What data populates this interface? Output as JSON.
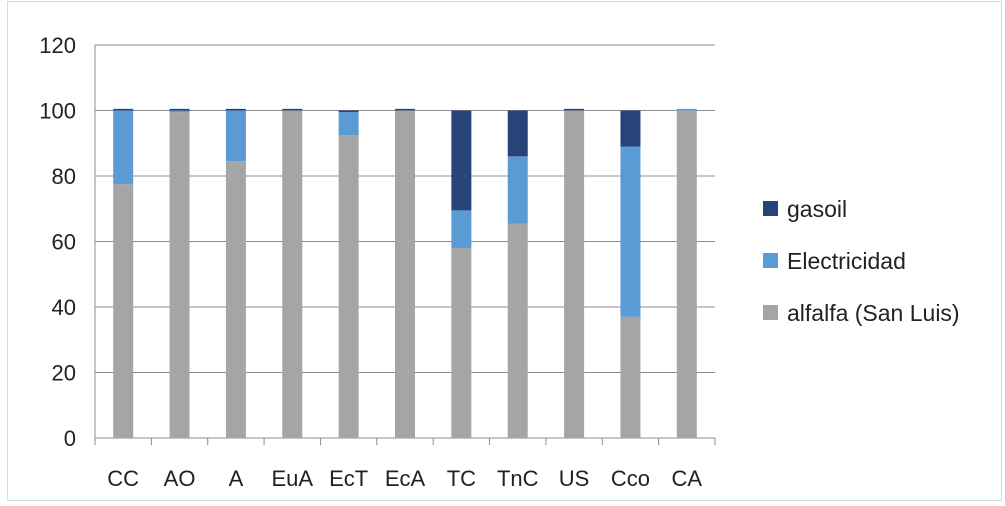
{
  "chart_data": {
    "type": "bar",
    "stacked": true,
    "categories": [
      "CC",
      "AO",
      "A",
      "EuA",
      "EcT",
      "EcA",
      "TC",
      "TnC",
      "US",
      "Cco",
      "CA"
    ],
    "series": [
      {
        "name": "alfalfa (San Luis)",
        "color": "#a5a5a5",
        "values": [
          77.5,
          99.5,
          84.5,
          100,
          92.5,
          100,
          58,
          65.5,
          100,
          37,
          100
        ]
      },
      {
        "name": "Electricidad",
        "color": "#5b9bd5",
        "values": [
          22.5,
          0.5,
          15.5,
          0,
          7,
          0,
          11.5,
          20.5,
          0,
          52,
          0.5
        ]
      },
      {
        "name": "gasoil",
        "color": "#264478",
        "values": [
          0.5,
          0.5,
          0.5,
          0.5,
          0.5,
          0.5,
          30.5,
          14,
          0.5,
          11,
          0
        ]
      }
    ],
    "legend_order": [
      "gasoil",
      "Electricidad",
      "alfalfa (San Luis)"
    ],
    "legend_position": "right",
    "yticks": [
      0,
      20,
      40,
      60,
      80,
      100,
      120
    ],
    "ylim": [
      0,
      120
    ],
    "grid": true
  }
}
